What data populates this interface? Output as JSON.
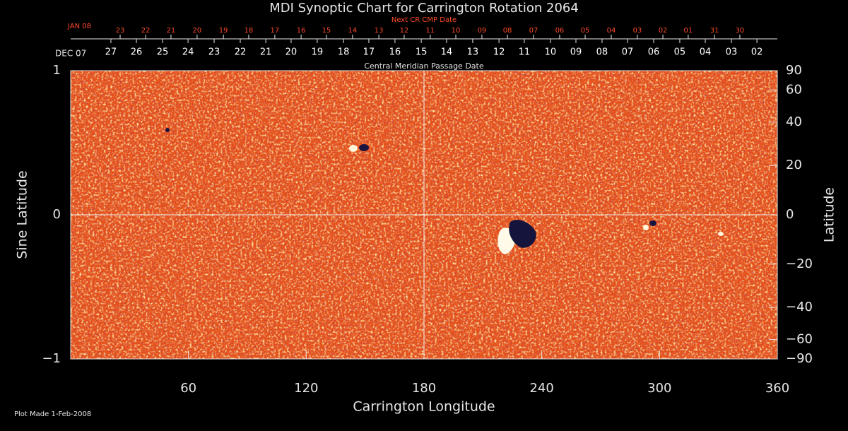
{
  "chart_data": {
    "type": "synoptic-map",
    "title": "MDI Synoptic Chart for Carrington Rotation 2064",
    "xlabel": "Carrington Longitude",
    "ylabel": "Sine Latitude",
    "y2label": "Latitude",
    "xlim": [
      0,
      360
    ],
    "xticks": [
      60,
      120,
      180,
      240,
      300,
      360
    ],
    "ylim": [
      -1,
      1
    ],
    "yticks": [
      {
        "value": -1,
        "label": "−1"
      },
      0,
      1
    ],
    "y2lim": [
      -90,
      90
    ],
    "y2scale": "sine",
    "y2ticks": [
      {
        "value": -90,
        "label": "−90"
      },
      {
        "value": -60,
        "label": "−60"
      },
      {
        "value": -40,
        "label": "−40"
      },
      {
        "value": -20,
        "label": "−20"
      },
      0,
      20,
      40,
      60,
      90
    ],
    "cmp_axis": {
      "label": "Central Meridian Passage Date",
      "month": "DEC 07",
      "categories": [
        "27",
        "26",
        "25",
        "24",
        "23",
        "22",
        "21",
        "20",
        "19",
        "18",
        "17",
        "16",
        "15",
        "14",
        "13",
        "12",
        "11",
        "10",
        "09",
        "08",
        "07",
        "06",
        "05",
        "04",
        "03",
        "02"
      ],
      "x": [
        20.5,
        33.5,
        46.8,
        59.8,
        73.1,
        86.4,
        99.4,
        112.3,
        125.6,
        139.0,
        151.9,
        165.2,
        178.6,
        191.5,
        204.8,
        218.2,
        231.1,
        244.4,
        257.4,
        270.7,
        283.7,
        297.0,
        310.3,
        323.3,
        336.6,
        349.6
      ],
      "color": "#ffffff"
    },
    "next_cmp_axis": {
      "label": "Next CR CMP Date",
      "month": "JAN 08",
      "categories": [
        "23",
        "22",
        "21",
        "20",
        "19",
        "18",
        "17",
        "16",
        "15",
        "14",
        "13",
        "12",
        "11",
        "10",
        "09",
        "08",
        "07",
        "06",
        "05",
        "04",
        "03",
        "02",
        "01",
        "31",
        "30"
      ],
      "x": [
        25.2,
        38.2,
        51.1,
        64.4,
        77.8,
        90.7,
        104.0,
        117.4,
        130.3,
        143.6,
        157.0,
        169.9,
        183.2,
        196.2,
        209.5,
        222.5,
        235.8,
        249.1,
        262.1,
        275.4,
        288.7,
        301.7,
        314.6,
        328.0,
        340.9
      ],
      "color": "#ff4a2a"
    },
    "footer": "Plot Made  1-Feb-2008"
  }
}
